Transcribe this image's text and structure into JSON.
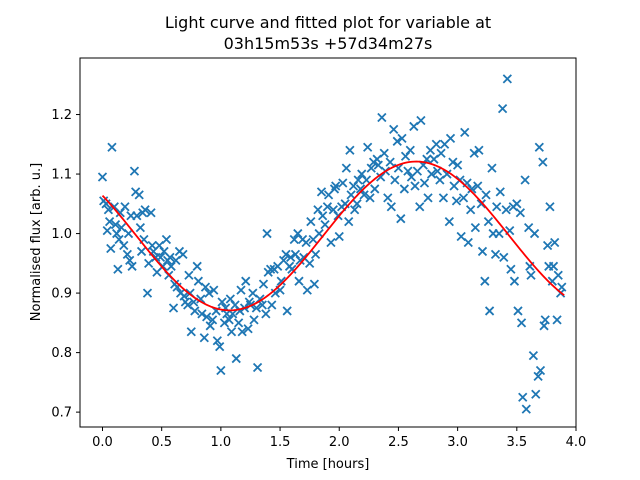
{
  "chart_data": {
    "type": "scatter",
    "title_line1": "Light curve and fitted plot for variable at",
    "title_line2": "03h15m53s +57d34m27s",
    "xlabel": "Time [hours]",
    "ylabel": "Normalised flux [arb. u.]",
    "xlim": [
      -0.19,
      4.0
    ],
    "ylim": [
      0.675,
      1.295
    ],
    "xticks": [
      0.0,
      0.5,
      1.0,
      1.5,
      2.0,
      2.5,
      3.0,
      3.5,
      4.0
    ],
    "yticks": [
      0.7,
      0.8,
      0.9,
      1.0,
      1.1,
      1.2
    ],
    "xtick_labels": [
      "0.0",
      "0.5",
      "1.0",
      "1.5",
      "2.0",
      "2.5",
      "3.0",
      "3.5",
      "4.0"
    ],
    "ytick_labels": [
      "0.7",
      "0.8",
      "0.9",
      "1.0",
      "1.1",
      "1.2"
    ],
    "grid": false,
    "legend": "none",
    "colors": {
      "points": "#1f77b4",
      "fit": "#ff0000"
    },
    "fit": {
      "type": "sinusoid",
      "x_range": [
        0.0,
        3.9
      ],
      "offset": 0.996,
      "amplitude": 0.125,
      "period_hours": 3.15,
      "max_at_hours": 2.65
    },
    "points": [
      [
        0.0,
        1.095
      ],
      [
        0.01,
        1.055
      ],
      [
        0.03,
        1.05
      ],
      [
        0.04,
        1.005
      ],
      [
        0.05,
        1.04
      ],
      [
        0.06,
        1.02
      ],
      [
        0.07,
        0.975
      ],
      [
        0.08,
        1.145
      ],
      [
        0.1,
        1.045
      ],
      [
        0.11,
        1.015
      ],
      [
        0.12,
        1.0
      ],
      [
        0.13,
        0.94
      ],
      [
        0.14,
        0.99
      ],
      [
        0.15,
        1.035
      ],
      [
        0.16,
        1.01
      ],
      [
        0.18,
        0.98
      ],
      [
        0.19,
        1.045
      ],
      [
        0.21,
        0.965
      ],
      [
        0.22,
        1.0
      ],
      [
        0.23,
        0.955
      ],
      [
        0.24,
        1.03
      ],
      [
        0.25,
        0.945
      ],
      [
        0.27,
        1.105
      ],
      [
        0.28,
        1.07
      ],
      [
        0.29,
        1.03
      ],
      [
        0.31,
        1.065
      ],
      [
        0.32,
        1.01
      ],
      [
        0.33,
        0.97
      ],
      [
        0.34,
        1.035
      ],
      [
        0.35,
        0.99
      ],
      [
        0.36,
        1.04
      ],
      [
        0.38,
        0.9
      ],
      [
        0.39,
        0.95
      ],
      [
        0.41,
        1.035
      ],
      [
        0.42,
        0.98
      ],
      [
        0.43,
        0.97
      ],
      [
        0.45,
        0.96
      ],
      [
        0.46,
        0.935
      ],
      [
        0.48,
        0.98
      ],
      [
        0.49,
        0.96
      ],
      [
        0.51,
        0.945
      ],
      [
        0.52,
        0.97
      ],
      [
        0.54,
        0.99
      ],
      [
        0.55,
        0.955
      ],
      [
        0.56,
        0.93
      ],
      [
        0.57,
        0.96
      ],
      [
        0.58,
        0.945
      ],
      [
        0.6,
        0.875
      ],
      [
        0.61,
        0.915
      ],
      [
        0.62,
        0.955
      ],
      [
        0.63,
        0.91
      ],
      [
        0.65,
        0.97
      ],
      [
        0.66,
        0.9
      ],
      [
        0.68,
        0.965
      ],
      [
        0.69,
        0.895
      ],
      [
        0.7,
        0.885
      ],
      [
        0.72,
        0.88
      ],
      [
        0.73,
        0.93
      ],
      [
        0.74,
        0.9
      ],
      [
        0.75,
        0.835
      ],
      [
        0.77,
        0.885
      ],
      [
        0.78,
        0.87
      ],
      [
        0.8,
        0.945
      ],
      [
        0.81,
        0.92
      ],
      [
        0.83,
        0.89
      ],
      [
        0.84,
        0.865
      ],
      [
        0.86,
        0.825
      ],
      [
        0.87,
        0.91
      ],
      [
        0.88,
        0.86
      ],
      [
        0.9,
        0.9
      ],
      [
        0.91,
        0.845
      ],
      [
        0.93,
        0.855
      ],
      [
        0.94,
        0.905
      ],
      [
        0.96,
        0.87
      ],
      [
        0.97,
        0.82
      ],
      [
        0.99,
        0.81
      ],
      [
        1.0,
        0.77
      ],
      [
        1.01,
        0.885
      ],
      [
        1.03,
        0.85
      ],
      [
        1.04,
        0.875
      ],
      [
        1.05,
        0.865
      ],
      [
        1.07,
        0.855
      ],
      [
        1.08,
        0.89
      ],
      [
        1.09,
        0.835
      ],
      [
        1.1,
        0.865
      ],
      [
        1.12,
        0.88
      ],
      [
        1.13,
        0.79
      ],
      [
        1.15,
        0.85
      ],
      [
        1.16,
        0.87
      ],
      [
        1.17,
        0.905
      ],
      [
        1.18,
        0.835
      ],
      [
        1.2,
        0.875
      ],
      [
        1.21,
        0.92
      ],
      [
        1.23,
        0.84
      ],
      [
        1.24,
        0.885
      ],
      [
        1.25,
        0.88
      ],
      [
        1.27,
        0.9
      ],
      [
        1.28,
        0.855
      ],
      [
        1.3,
        0.875
      ],
      [
        1.31,
        0.775
      ],
      [
        1.33,
        0.89
      ],
      [
        1.35,
        0.88
      ],
      [
        1.36,
        0.915
      ],
      [
        1.38,
        0.865
      ],
      [
        1.39,
        1.0
      ],
      [
        1.4,
        0.935
      ],
      [
        1.42,
        0.94
      ],
      [
        1.43,
        0.88
      ],
      [
        1.45,
        0.94
      ],
      [
        1.46,
        0.9
      ],
      [
        1.48,
        0.945
      ],
      [
        1.5,
        0.905
      ],
      [
        1.51,
        0.92
      ],
      [
        1.53,
        0.955
      ],
      [
        1.55,
        0.965
      ],
      [
        1.56,
        0.87
      ],
      [
        1.58,
        0.945
      ],
      [
        1.59,
        0.96
      ],
      [
        1.6,
        0.94
      ],
      [
        1.62,
        0.99
      ],
      [
        1.63,
        0.965
      ],
      [
        1.65,
        1.0
      ],
      [
        1.66,
        0.92
      ],
      [
        1.67,
        0.955
      ],
      [
        1.69,
        0.99
      ],
      [
        1.7,
        0.96
      ],
      [
        1.72,
        0.985
      ],
      [
        1.73,
        0.905
      ],
      [
        1.75,
        0.95
      ],
      [
        1.76,
        1.02
      ],
      [
        1.78,
        0.99
      ],
      [
        1.79,
        0.915
      ],
      [
        1.8,
        0.965
      ],
      [
        1.82,
        1.04
      ],
      [
        1.83,
        1.0
      ],
      [
        1.85,
        1.07
      ],
      [
        1.86,
        1.03
      ],
      [
        1.88,
        1.015
      ],
      [
        1.9,
        1.045
      ],
      [
        1.91,
        1.065
      ],
      [
        1.93,
        0.985
      ],
      [
        1.95,
        1.04
      ],
      [
        1.96,
        1.075
      ],
      [
        1.97,
        1.08
      ],
      [
        1.99,
        1.03
      ],
      [
        2.0,
        0.995
      ],
      [
        2.02,
        1.045
      ],
      [
        2.03,
        1.085
      ],
      [
        2.05,
        1.05
      ],
      [
        2.06,
        1.11
      ],
      [
        2.08,
        1.02
      ],
      [
        2.09,
        1.14
      ],
      [
        2.1,
        1.065
      ],
      [
        2.12,
        1.08
      ],
      [
        2.13,
        1.04
      ],
      [
        2.15,
        1.05
      ],
      [
        2.16,
        1.09
      ],
      [
        2.18,
        1.075
      ],
      [
        2.19,
        1.1
      ],
      [
        2.21,
        1.065
      ],
      [
        2.23,
        1.09
      ],
      [
        2.24,
        1.145
      ],
      [
        2.26,
        1.06
      ],
      [
        2.27,
        1.11
      ],
      [
        2.29,
        1.12
      ],
      [
        2.3,
        1.075
      ],
      [
        2.32,
        1.125
      ],
      [
        2.33,
        1.115
      ],
      [
        2.35,
        1.095
      ],
      [
        2.36,
        1.195
      ],
      [
        2.38,
        1.135
      ],
      [
        2.39,
        1.105
      ],
      [
        2.41,
        1.06
      ],
      [
        2.43,
        1.12
      ],
      [
        2.44,
        1.045
      ],
      [
        2.46,
        1.175
      ],
      [
        2.47,
        1.09
      ],
      [
        2.49,
        1.155
      ],
      [
        2.5,
        1.11
      ],
      [
        2.52,
        1.025
      ],
      [
        2.53,
        1.16
      ],
      [
        2.55,
        1.075
      ],
      [
        2.56,
        1.13
      ],
      [
        2.58,
        1.105
      ],
      [
        2.6,
        1.14
      ],
      [
        2.61,
        1.095
      ],
      [
        2.63,
        1.18
      ],
      [
        2.64,
        1.08
      ],
      [
        2.66,
        1.105
      ],
      [
        2.68,
        1.045
      ],
      [
        2.69,
        1.19
      ],
      [
        2.71,
        1.115
      ],
      [
        2.72,
        1.085
      ],
      [
        2.74,
        1.125
      ],
      [
        2.75,
        1.06
      ],
      [
        2.77,
        1.14
      ],
      [
        2.78,
        1.1
      ],
      [
        2.8,
        1.125
      ],
      [
        2.82,
        1.15
      ],
      [
        2.83,
        1.105
      ],
      [
        2.85,
        1.09
      ],
      [
        2.86,
        1.135
      ],
      [
        2.88,
        1.06
      ],
      [
        2.89,
        1.15
      ],
      [
        2.91,
        1.1
      ],
      [
        2.93,
        1.02
      ],
      [
        2.94,
        1.16
      ],
      [
        2.96,
        1.12
      ],
      [
        2.97,
        1.08
      ],
      [
        2.99,
        1.055
      ],
      [
        3.0,
        1.115
      ],
      [
        3.02,
        1.09
      ],
      [
        3.03,
        0.995
      ],
      [
        3.05,
        1.06
      ],
      [
        3.06,
        1.17
      ],
      [
        3.08,
        1.085
      ],
      [
        3.09,
        0.985
      ],
      [
        3.11,
        1.04
      ],
      [
        3.12,
        1.075
      ],
      [
        3.14,
        1.135
      ],
      [
        3.15,
        1.01
      ],
      [
        3.17,
        1.08
      ],
      [
        3.18,
        1.14
      ],
      [
        3.2,
        1.05
      ],
      [
        3.21,
        0.97
      ],
      [
        3.23,
        0.92
      ],
      [
        3.24,
        1.065
      ],
      [
        3.26,
        1.02
      ],
      [
        3.27,
        0.87
      ],
      [
        3.29,
        1.11
      ],
      [
        3.3,
        1.0
      ],
      [
        3.32,
        0.965
      ],
      [
        3.33,
        1.045
      ],
      [
        3.35,
        1.0
      ],
      [
        3.36,
        1.07
      ],
      [
        3.38,
        1.21
      ],
      [
        3.39,
        0.96
      ],
      [
        3.41,
        1.04
      ],
      [
        3.42,
        1.26
      ],
      [
        3.44,
        1.005
      ],
      [
        3.45,
        0.94
      ],
      [
        3.47,
        1.045
      ],
      [
        3.48,
        0.92
      ],
      [
        3.5,
        1.05
      ],
      [
        3.51,
        0.87
      ],
      [
        3.53,
        1.035
      ],
      [
        3.54,
        0.85
      ],
      [
        3.55,
        0.725
      ],
      [
        3.57,
        1.09
      ],
      [
        3.58,
        0.705
      ],
      [
        3.6,
        1.01
      ],
      [
        3.61,
        0.945
      ],
      [
        3.62,
        0.93
      ],
      [
        3.64,
        0.795
      ],
      [
        3.65,
        1.0
      ],
      [
        3.66,
        0.73
      ],
      [
        3.68,
        0.76
      ],
      [
        3.69,
        1.145
      ],
      [
        3.7,
        0.77
      ],
      [
        3.72,
        1.12
      ],
      [
        3.73,
        0.845
      ],
      [
        3.74,
        0.855
      ],
      [
        3.76,
        0.98
      ],
      [
        3.77,
        0.945
      ],
      [
        3.78,
        1.045
      ],
      [
        3.8,
        0.92
      ],
      [
        3.81,
        0.945
      ],
      [
        3.82,
        0.985
      ],
      [
        3.84,
        0.855
      ],
      [
        3.85,
        0.93
      ],
      [
        3.87,
        0.9
      ],
      [
        3.88,
        0.91
      ]
    ]
  }
}
